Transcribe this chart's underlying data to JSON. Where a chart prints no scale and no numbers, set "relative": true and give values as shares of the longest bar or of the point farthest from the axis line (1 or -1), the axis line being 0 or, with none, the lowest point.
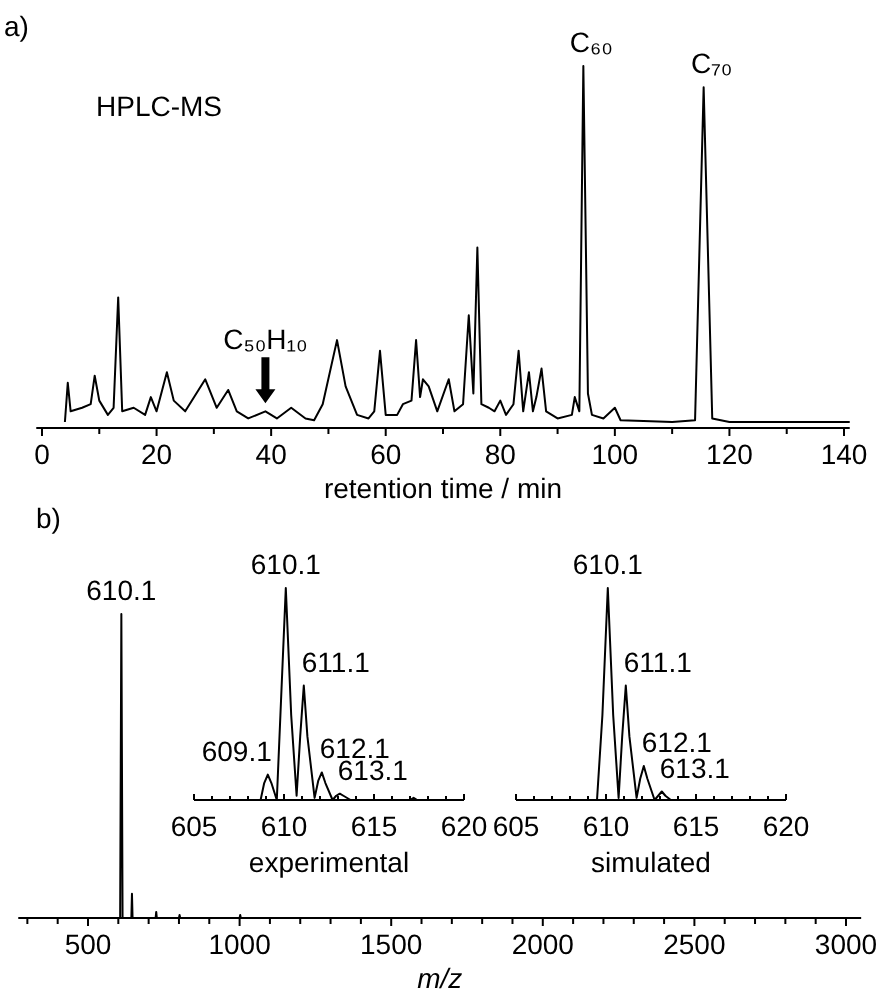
{
  "chart_data": [
    {
      "type": "line",
      "title": "a)",
      "xlabel": "retention time / min",
      "relative": true,
      "xlim": [
        -1,
        141
      ],
      "xticks": [
        0,
        {
          "value": 10,
          "label": null
        },
        20,
        {
          "value": 30,
          "label": null
        },
        40,
        {
          "value": 50,
          "label": null
        },
        60,
        {
          "value": 70,
          "label": null
        },
        80,
        {
          "value": 90,
          "label": null
        },
        100,
        {
          "value": 110,
          "label": null
        },
        120,
        {
          "value": 130,
          "label": null
        },
        140
      ],
      "annotations": [
        "HPLC-MS",
        {
          "text": "C₆₀",
          "x": 94.5,
          "y": 1
        },
        {
          "text": "C₇₀",
          "x": 115.5,
          "y": 0.94
        },
        {
          "text": "C₅₀H₁₀",
          "x": 39,
          "y": 0.03
        }
      ],
      "series": [
        {
          "color": "#000000",
          "x": [
            4,
            4.5,
            5,
            7,
            8.5,
            9.2,
            10,
            11.5,
            12.5,
            13.3,
            14,
            16,
            18,
            19,
            20,
            21.8,
            23,
            25,
            28.5,
            30.5,
            32.5,
            34,
            36,
            39,
            41,
            43.5,
            46,
            47.5,
            49,
            51.5,
            53,
            55,
            57,
            58,
            59,
            60,
            62,
            63,
            64.5,
            65.3,
            66,
            66.5,
            67.5,
            69,
            71,
            72,
            73.5,
            74.5,
            75.3,
            76,
            76.7,
            78,
            79,
            80,
            81,
            82.3,
            83.2,
            84,
            85,
            85.7,
            86.3,
            87.2,
            88,
            90,
            92.5,
            93,
            93.8,
            94.5,
            95.3,
            96,
            98,
            100,
            101,
            105,
            110,
            114,
            115.5,
            117,
            120,
            141
          ],
          "values": [
            0,
            0.11,
            0.03,
            0.04,
            0.05,
            0.13,
            0.06,
            0.02,
            0.04,
            0.35,
            0.03,
            0.04,
            0.02,
            0.07,
            0.03,
            0.14,
            0.06,
            0.03,
            0.12,
            0.04,
            0.09,
            0.03,
            0.01,
            0.03,
            0.01,
            0.04,
            0.01,
            0.005,
            0.05,
            0.23,
            0.1,
            0.02,
            0.01,
            0.03,
            0.2,
            0.02,
            0.02,
            0.05,
            0.06,
            0.23,
            0.07,
            0.12,
            0.1,
            0.03,
            0.12,
            0.03,
            0.05,
            0.3,
            0.08,
            0.49,
            0.05,
            0.04,
            0.03,
            0.06,
            0.02,
            0.05,
            0.2,
            0.03,
            0.14,
            0.03,
            0.07,
            0.15,
            0.03,
            0.01,
            0.02,
            0.07,
            0.03,
            1,
            0.08,
            0.02,
            0.01,
            0.04,
            0.005,
            0.003,
            0,
            0.005,
            0.94,
            0.01,
            0,
            0
          ]
        }
      ]
    },
    {
      "type": "line",
      "title": "b)",
      "xlabel": "m/z",
      "relative": true,
      "xlim": [
        270,
        3050
      ],
      "xticks": [
        {
          "value": 300,
          "label": null
        },
        {
          "value": 400,
          "label": null
        },
        500,
        {
          "value": 600,
          "label": null
        },
        {
          "value": 700,
          "label": null
        },
        {
          "value": 800,
          "label": null
        },
        {
          "value": 900,
          "label": null
        },
        1000,
        {
          "value": 1100,
          "label": null
        },
        {
          "value": 1200,
          "label": null
        },
        {
          "value": 1300,
          "label": null
        },
        {
          "value": 1400,
          "label": null
        },
        1500,
        {
          "value": 1600,
          "label": null
        },
        {
          "value": 1700,
          "label": null
        },
        {
          "value": 1800,
          "label": null
        },
        {
          "value": 1900,
          "label": null
        },
        2000,
        {
          "value": 2100,
          "label": null
        },
        {
          "value": 2200,
          "label": null
        },
        {
          "value": 2300,
          "label": null
        },
        {
          "value": 2400,
          "label": null
        },
        2500,
        {
          "value": 2600,
          "label": null
        },
        {
          "value": 2700,
          "label": null
        },
        {
          "value": 2800,
          "label": null
        },
        {
          "value": 2900,
          "label": null
        },
        3000
      ],
      "annotations": [
        {
          "text": "610.1",
          "x": 610,
          "y": 1
        }
      ],
      "series": [
        {
          "color": "#000000",
          "x": [
            280,
            600,
            606,
            610,
            614,
            640,
            643,
            645,
            647,
            720,
            723,
            725,
            727,
            800,
            802,
            804,
            1000,
            1002,
            1004,
            3040
          ],
          "values": [
            0,
            0,
            0,
            1,
            0,
            0,
            0,
            0.08,
            0,
            0,
            0,
            0.02,
            0,
            0,
            0.01,
            0,
            0,
            0.01,
            0,
            0
          ]
        }
      ]
    },
    {
      "type": "line",
      "xlabel": "experimental",
      "relative": true,
      "xlim": [
        605,
        620
      ],
      "xticks": [
        605,
        {
          "value": 606,
          "label": null
        },
        {
          "value": 607,
          "label": null
        },
        {
          "value": 608,
          "label": null
        },
        {
          "value": 609,
          "label": null
        },
        610,
        {
          "value": 611,
          "label": null
        },
        {
          "value": 612,
          "label": null
        },
        {
          "value": 613,
          "label": null
        },
        {
          "value": 614,
          "label": null
        },
        615,
        {
          "value": 616,
          "label": null
        },
        {
          "value": 617,
          "label": null
        },
        {
          "value": 618,
          "label": null
        },
        {
          "value": 619,
          "label": null
        },
        620
      ],
      "annotations": [
        {
          "text": "609.1",
          "x": 609.1,
          "y": 0.12
        },
        {
          "text": "610.1",
          "x": 610.1,
          "y": 1
        },
        {
          "text": "611.1",
          "x": 611.1,
          "y": 0.54
        },
        {
          "text": "612.1",
          "x": 612.1,
          "y": 0.13
        },
        {
          "text": "613.1",
          "x": 613.1,
          "y": 0.03
        }
      ],
      "series": [
        {
          "color": "#000000",
          "x": [
            605,
            608.7,
            608.9,
            609.1,
            609.3,
            609.6,
            609.8,
            610.1,
            610.4,
            610.7,
            610.9,
            611.1,
            611.3,
            611.7,
            611.9,
            612.1,
            612.3,
            612.7,
            612.9,
            613.1,
            613.3,
            613.7,
            617,
            617.2,
            617.4,
            620
          ],
          "values": [
            0,
            0,
            0.08,
            0.12,
            0.08,
            0,
            0.4,
            1,
            0.4,
            0.02,
            0.3,
            0.54,
            0.3,
            0.01,
            0.09,
            0.13,
            0.08,
            0,
            0.02,
            0.03,
            0.02,
            0,
            0,
            0.01,
            0,
            0
          ]
        }
      ]
    },
    {
      "type": "line",
      "xlabel": "simulated",
      "relative": true,
      "xlim": [
        605,
        620
      ],
      "xticks": [
        605,
        {
          "value": 606,
          "label": null
        },
        {
          "value": 607,
          "label": null
        },
        {
          "value": 608,
          "label": null
        },
        {
          "value": 609,
          "label": null
        },
        610,
        {
          "value": 611,
          "label": null
        },
        {
          "value": 612,
          "label": null
        },
        {
          "value": 613,
          "label": null
        },
        {
          "value": 614,
          "label": null
        },
        615,
        {
          "value": 616,
          "label": null
        },
        {
          "value": 617,
          "label": null
        },
        {
          "value": 618,
          "label": null
        },
        {
          "value": 619,
          "label": null
        },
        620
      ],
      "annotations": [
        {
          "text": "610.1",
          "x": 610.1,
          "y": 1
        },
        {
          "text": "611.1",
          "x": 611.1,
          "y": 0.54
        },
        {
          "text": "612.1",
          "x": 612.1,
          "y": 0.16
        },
        {
          "text": "613.1",
          "x": 613.1,
          "y": 0.04
        }
      ],
      "series": [
        {
          "color": "#000000",
          "x": [
            605,
            609.5,
            609.8,
            610.1,
            610.4,
            610.7,
            610.9,
            611.1,
            611.3,
            611.7,
            611.9,
            612.1,
            612.3,
            612.7,
            612.9,
            613.1,
            613.3,
            613.6,
            620
          ],
          "values": [
            0,
            0,
            0.4,
            1,
            0.4,
            0.01,
            0.3,
            0.54,
            0.3,
            0.01,
            0.1,
            0.16,
            0.1,
            0,
            0.02,
            0.04,
            0.02,
            0,
            0
          ]
        }
      ]
    }
  ]
}
